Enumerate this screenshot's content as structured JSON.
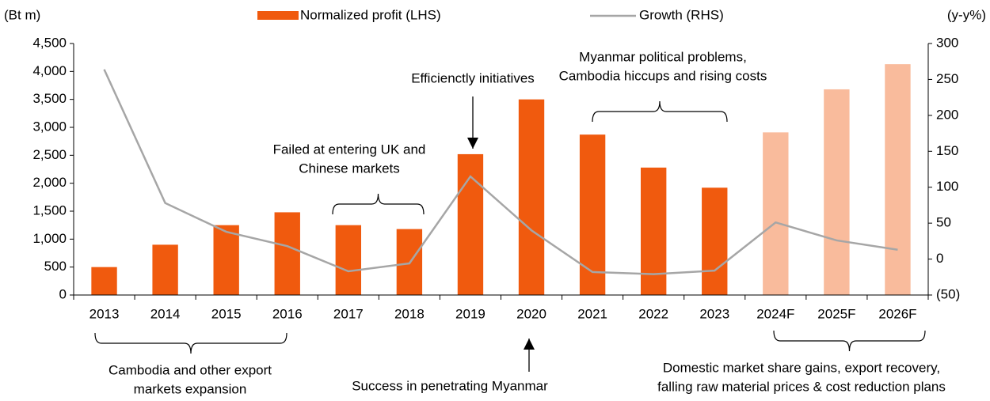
{
  "chart_data": {
    "type": "bar_line",
    "y_label": "(Bt m)",
    "y2_label": "(y-y%)",
    "categories": [
      "2013",
      "2014",
      "2015",
      "2016",
      "2017",
      "2018",
      "2019",
      "2020",
      "2021",
      "2022",
      "2023",
      "2024F",
      "2025F",
      "2026F"
    ],
    "series": [
      {
        "name": "Normalized profit (LHS)",
        "type": "bar",
        "color": "#f05a0e",
        "colors": [
          "#f05a0e",
          "#f05a0e",
          "#f05a0e",
          "#f05a0e",
          "#f05a0e",
          "#f05a0e",
          "#f05a0e",
          "#f05a0e",
          "#f05a0e",
          "#f05a0e",
          "#f05a0e",
          "#f9bb9c",
          "#f9bb9c",
          "#f9bb9c"
        ],
        "values": [
          500,
          900,
          1250,
          1480,
          1250,
          1180,
          2520,
          3500,
          2870,
          2280,
          1920,
          2910,
          3680,
          4130
        ]
      },
      {
        "name": "Growth (RHS)",
        "type": "line",
        "axis": "y2",
        "color": "#a6a6a6",
        "values": [
          264,
          78,
          38,
          18,
          -17,
          -6,
          115,
          40,
          -18,
          -21,
          -16,
          51,
          26,
          13
        ]
      }
    ],
    "ylim": [
      0,
      4500
    ],
    "yticks": [
      0,
      500,
      {
        "value": 1000,
        "label": "1,000"
      },
      {
        "value": 1500,
        "label": "1,500"
      },
      {
        "value": 2000,
        "label": "2,000"
      },
      {
        "value": 2500,
        "label": "2,500"
      },
      {
        "value": 3000,
        "label": "3,000"
      },
      {
        "value": 3500,
        "label": "3,500"
      },
      {
        "value": 4000,
        "label": "4,000"
      },
      {
        "value": 4500,
        "label": "4,500"
      }
    ],
    "y2lim": [
      -50,
      300
    ],
    "y2ticks": [
      {
        "value": -50,
        "label": "(50)"
      },
      0,
      50,
      100,
      150,
      200,
      250,
      300
    ],
    "annotations": [
      {
        "lines": [
          "Efficienctly initiatives"
        ]
      },
      {
        "lines": [
          "Myanmar political problems,",
          "Cambodia hiccups and rising costs"
        ]
      },
      {
        "lines": [
          "Failed at entering UK and",
          "Chinese markets"
        ]
      },
      {
        "lines": [
          "Cambodia and other export",
          "markets expansion"
        ]
      },
      {
        "lines": [
          "Success in penetrating Myanmar"
        ]
      },
      {
        "lines": [
          "Domestic market share gains, export recovery,",
          "falling raw material prices & cost reduction plans"
        ]
      }
    ]
  }
}
